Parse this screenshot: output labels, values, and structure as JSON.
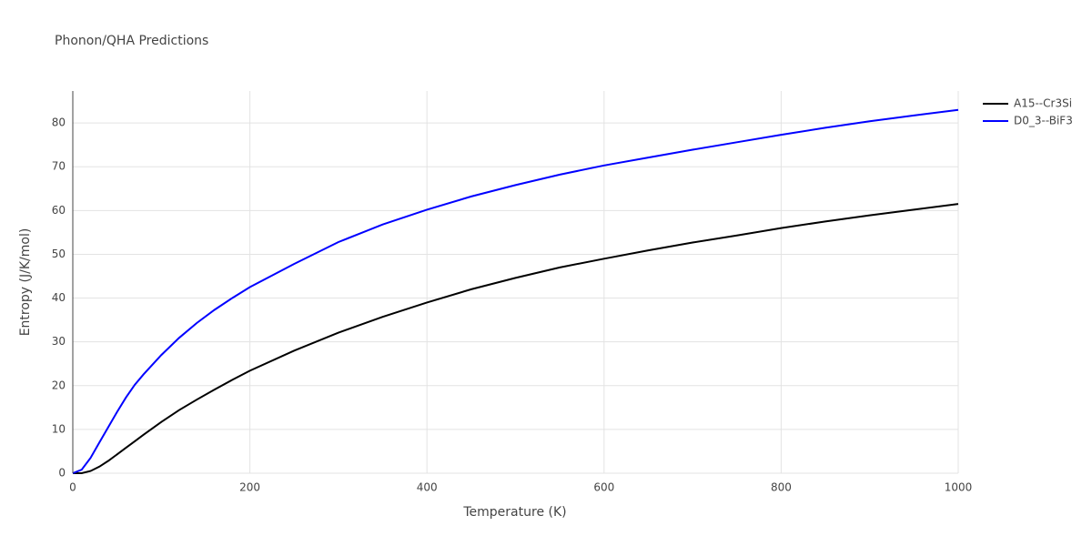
{
  "chart_data": {
    "type": "line",
    "title": "Phonon/QHA Predictions",
    "x_label": "Temperature (K)",
    "y_label": "Entropy (J/K/mol)",
    "x": [
      0,
      10,
      20,
      30,
      40,
      50,
      60,
      70,
      80,
      100,
      120,
      140,
      160,
      180,
      200,
      250,
      300,
      350,
      400,
      450,
      500,
      550,
      600,
      650,
      700,
      750,
      800,
      850,
      900,
      950,
      1000
    ],
    "series": [
      {
        "name": "A15--Cr3Si",
        "color": "#000000",
        "values": [
          0,
          0,
          0.5,
          1.5,
          2.8,
          4.3,
          5.8,
          7.3,
          8.8,
          11.7,
          14.4,
          16.8,
          19.1,
          21.3,
          23.4,
          28.0,
          32.1,
          35.7,
          39.0,
          42.0,
          44.6,
          47.0,
          49.0,
          50.9,
          52.7,
          54.3,
          56.0,
          57.5,
          58.9,
          60.2,
          61.5
        ]
      },
      {
        "name": "D0_3--BiF3",
        "color": "#0000ff",
        "values": [
          0,
          0.8,
          3.5,
          7,
          10.5,
          14,
          17.3,
          20.2,
          22.6,
          27.0,
          30.9,
          34.3,
          37.3,
          40.0,
          42.5,
          47.8,
          52.8,
          56.8,
          60.2,
          63.2,
          65.8,
          68.2,
          70.3,
          72.1,
          73.9,
          75.6,
          77.3,
          78.9,
          80.4,
          81.7,
          83.0
        ]
      }
    ],
    "xlim": [
      0,
      1000
    ],
    "xticks": [
      0,
      200,
      400,
      600,
      800,
      1000
    ],
    "ylim": [
      0,
      87.3
    ],
    "yticks": [
      0,
      10,
      20,
      30,
      40,
      50,
      60,
      70,
      80
    ],
    "grid": true,
    "legend": "right"
  }
}
